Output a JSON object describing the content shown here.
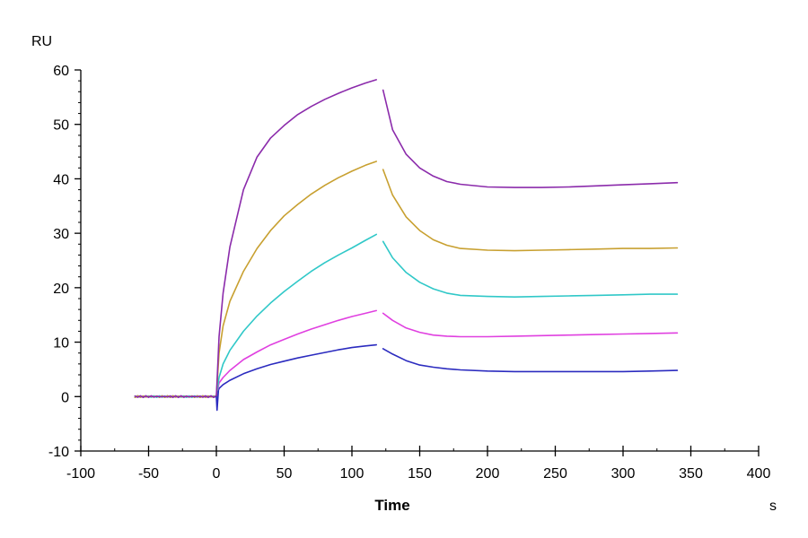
{
  "chart_data": {
    "type": "line",
    "title": "",
    "xlabel": "Time",
    "ylabel": "",
    "x_unit": "s",
    "y_unit": "RU",
    "xlim": [
      -100,
      400
    ],
    "ylim": [
      -10,
      60
    ],
    "x_ticks": [
      -100,
      -50,
      0,
      50,
      100,
      150,
      200,
      250,
      300,
      350,
      400
    ],
    "y_ticks": [
      -10,
      0,
      10,
      20,
      30,
      40,
      50,
      60
    ],
    "grid": false,
    "legend": "none",
    "association_phase": {
      "start": 0,
      "end": 118
    },
    "dissociation_phase": {
      "start": 123,
      "end": 340
    },
    "series": [
      {
        "color": "#2b2bbf",
        "baseline": 0,
        "association": [
          [
            0,
            0
          ],
          [
            2,
            1.5
          ],
          [
            5,
            2.2
          ],
          [
            10,
            3.0
          ],
          [
            20,
            4.2
          ],
          [
            30,
            5.1
          ],
          [
            40,
            5.9
          ],
          [
            50,
            6.5
          ],
          [
            60,
            7.1
          ],
          [
            70,
            7.6
          ],
          [
            80,
            8.1
          ],
          [
            90,
            8.6
          ],
          [
            100,
            9.0
          ],
          [
            110,
            9.3
          ],
          [
            118,
            9.5
          ]
        ],
        "dissociation": [
          [
            123,
            8.8
          ],
          [
            130,
            7.8
          ],
          [
            140,
            6.6
          ],
          [
            150,
            5.8
          ],
          [
            160,
            5.4
          ],
          [
            170,
            5.1
          ],
          [
            180,
            4.9
          ],
          [
            200,
            4.7
          ],
          [
            220,
            4.6
          ],
          [
            240,
            4.6
          ],
          [
            260,
            4.6
          ],
          [
            280,
            4.6
          ],
          [
            300,
            4.6
          ],
          [
            320,
            4.7
          ],
          [
            340,
            4.8
          ]
        ]
      },
      {
        "color": "#e040e0",
        "baseline": 0,
        "association": [
          [
            0,
            0
          ],
          [
            2,
            2.5
          ],
          [
            5,
            3.5
          ],
          [
            10,
            4.8
          ],
          [
            20,
            6.8
          ],
          [
            30,
            8.2
          ],
          [
            40,
            9.5
          ],
          [
            50,
            10.5
          ],
          [
            60,
            11.5
          ],
          [
            70,
            12.4
          ],
          [
            80,
            13.2
          ],
          [
            90,
            14.0
          ],
          [
            100,
            14.7
          ],
          [
            110,
            15.3
          ],
          [
            118,
            15.8
          ]
        ],
        "dissociation": [
          [
            123,
            15.3
          ],
          [
            130,
            14.0
          ],
          [
            140,
            12.6
          ],
          [
            150,
            11.8
          ],
          [
            160,
            11.3
          ],
          [
            170,
            11.1
          ],
          [
            180,
            11.0
          ],
          [
            200,
            11.0
          ],
          [
            220,
            11.1
          ],
          [
            240,
            11.2
          ],
          [
            260,
            11.3
          ],
          [
            280,
            11.4
          ],
          [
            300,
            11.5
          ],
          [
            320,
            11.6
          ],
          [
            340,
            11.7
          ]
        ]
      },
      {
        "color": "#30c8c8",
        "baseline": 0,
        "association": [
          [
            0,
            0
          ],
          [
            2,
            3.5
          ],
          [
            5,
            6.0
          ],
          [
            10,
            8.5
          ],
          [
            20,
            12.0
          ],
          [
            30,
            14.8
          ],
          [
            40,
            17.2
          ],
          [
            50,
            19.3
          ],
          [
            60,
            21.2
          ],
          [
            70,
            23.0
          ],
          [
            80,
            24.6
          ],
          [
            90,
            26.0
          ],
          [
            100,
            27.3
          ],
          [
            110,
            28.7
          ],
          [
            118,
            29.8
          ]
        ],
        "dissociation": [
          [
            123,
            28.5
          ],
          [
            130,
            25.5
          ],
          [
            140,
            22.8
          ],
          [
            150,
            21.0
          ],
          [
            160,
            19.8
          ],
          [
            170,
            19.0
          ],
          [
            180,
            18.6
          ],
          [
            200,
            18.4
          ],
          [
            220,
            18.3
          ],
          [
            240,
            18.4
          ],
          [
            260,
            18.5
          ],
          [
            280,
            18.6
          ],
          [
            300,
            18.7
          ],
          [
            320,
            18.8
          ],
          [
            340,
            18.8
          ]
        ]
      },
      {
        "color": "#c8a030",
        "baseline": 0,
        "association": [
          [
            0,
            0
          ],
          [
            2,
            8.0
          ],
          [
            5,
            13.0
          ],
          [
            10,
            17.5
          ],
          [
            20,
            23.0
          ],
          [
            30,
            27.2
          ],
          [
            40,
            30.5
          ],
          [
            50,
            33.2
          ],
          [
            60,
            35.3
          ],
          [
            70,
            37.2
          ],
          [
            80,
            38.8
          ],
          [
            90,
            40.2
          ],
          [
            100,
            41.4
          ],
          [
            110,
            42.5
          ],
          [
            118,
            43.2
          ]
        ],
        "dissociation": [
          [
            123,
            41.7
          ],
          [
            130,
            37.0
          ],
          [
            140,
            33.0
          ],
          [
            150,
            30.5
          ],
          [
            160,
            28.8
          ],
          [
            170,
            27.8
          ],
          [
            180,
            27.2
          ],
          [
            200,
            26.9
          ],
          [
            220,
            26.8
          ],
          [
            240,
            26.9
          ],
          [
            260,
            27.0
          ],
          [
            280,
            27.1
          ],
          [
            300,
            27.2
          ],
          [
            320,
            27.2
          ],
          [
            340,
            27.3
          ]
        ]
      },
      {
        "color": "#8b2bab",
        "baseline": 0,
        "association": [
          [
            0,
            0
          ],
          [
            2,
            11.0
          ],
          [
            5,
            19.0
          ],
          [
            10,
            27.5
          ],
          [
            20,
            38.0
          ],
          [
            30,
            44.0
          ],
          [
            40,
            47.5
          ],
          [
            50,
            49.8
          ],
          [
            60,
            51.8
          ],
          [
            70,
            53.3
          ],
          [
            80,
            54.6
          ],
          [
            90,
            55.7
          ],
          [
            100,
            56.7
          ],
          [
            110,
            57.6
          ],
          [
            118,
            58.2
          ]
        ],
        "dissociation": [
          [
            123,
            56.3
          ],
          [
            130,
            49.0
          ],
          [
            140,
            44.5
          ],
          [
            150,
            42.0
          ],
          [
            160,
            40.5
          ],
          [
            170,
            39.5
          ],
          [
            180,
            39.0
          ],
          [
            200,
            38.5
          ],
          [
            220,
            38.4
          ],
          [
            240,
            38.4
          ],
          [
            260,
            38.5
          ],
          [
            280,
            38.7
          ],
          [
            300,
            38.9
          ],
          [
            320,
            39.1
          ],
          [
            340,
            39.3
          ]
        ]
      }
    ]
  }
}
